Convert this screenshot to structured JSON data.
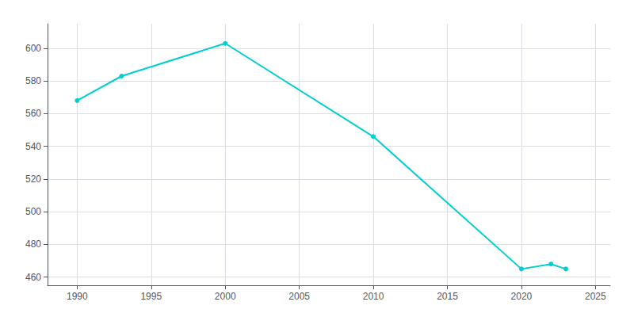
{
  "chart_data": {
    "type": "line",
    "x": [
      1990,
      1993,
      2000,
      2010,
      2020,
      2022,
      2023
    ],
    "values": [
      568,
      583,
      603,
      546,
      465,
      468,
      465
    ],
    "color": "#00CED1",
    "marker": "circle",
    "xlim": [
      1988,
      2026
    ],
    "ylim": [
      455,
      615
    ],
    "xticks": [
      1990,
      1995,
      2000,
      2005,
      2010,
      2015,
      2020,
      2025
    ],
    "yticks": [
      460,
      480,
      500,
      520,
      540,
      560,
      580,
      600
    ],
    "grid": true
  }
}
